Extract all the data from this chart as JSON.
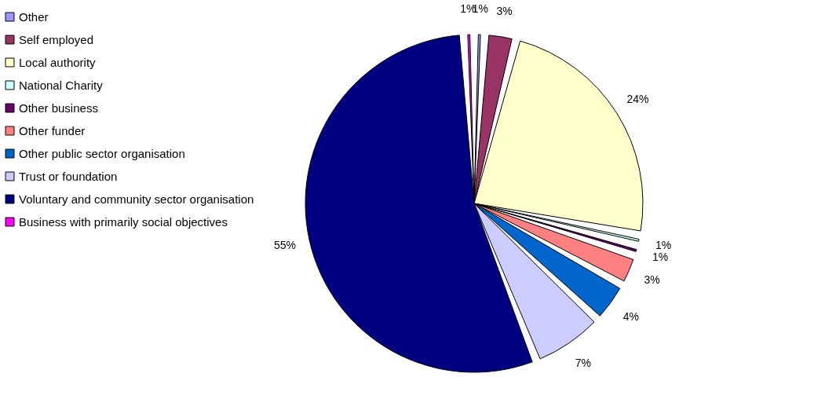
{
  "chart_data": {
    "type": "pie",
    "categories": [
      "Other",
      "Self employed",
      "Local authority",
      "National Charity",
      "Other business",
      "Other funder",
      "Other public sector organisation",
      "Trust or foundation",
      "Voluntary and community sector organisation",
      "Business with primarily social objectives"
    ],
    "values": [
      1,
      3,
      24,
      1,
      1,
      3,
      4,
      7,
      55,
      1
    ],
    "value_labels": [
      "1%",
      "3%",
      "24%",
      "1%",
      "1%",
      "3%",
      "4%",
      "7%",
      "55%",
      "1%"
    ],
    "colors": [
      "#9999ff",
      "#993366",
      "#ffffcc",
      "#ccffff",
      "#660066",
      "#ff8080",
      "#0066cc",
      "#ccccff",
      "#000080",
      "#ff00ff"
    ],
    "legend": "left"
  }
}
